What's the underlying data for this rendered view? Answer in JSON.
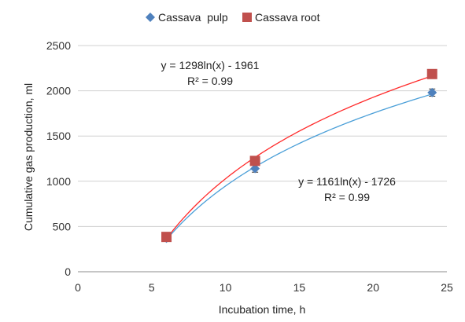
{
  "chart_data": {
    "type": "scatter",
    "title": "",
    "xlabel": "Incubation time, h",
    "ylabel": "Cumulative gas production, ml",
    "xlim": [
      0,
      25
    ],
    "ylim": [
      0,
      2500
    ],
    "xticks": [
      0,
      5,
      10,
      15,
      20,
      25
    ],
    "yticks": [
      0,
      500,
      1000,
      1500,
      2000,
      2500
    ],
    "grid": "horizontal",
    "legend_position": "top",
    "series": [
      {
        "name": "Cassava  pulp",
        "marker": "diamond",
        "color": "#4f81bd",
        "line_color": "#4a9fd8",
        "x": [
          6,
          12,
          24
        ],
        "y": [
          370,
          1140,
          1980
        ],
        "error": [
          30,
          40,
          40
        ],
        "trendline": {
          "a": 1161,
          "b": -1726
        }
      },
      {
        "name": "Cassava root",
        "marker": "square",
        "color": "#c0504d",
        "line_color": "#ff2b2b",
        "x": [
          6,
          12,
          24
        ],
        "y": [
          385,
          1225,
          2185
        ],
        "error": [
          25,
          30,
          30
        ],
        "trendline": {
          "a": 1298,
          "b": -1961
        }
      }
    ],
    "annotations": [
      {
        "series": "Cassava root",
        "equation": "y = 1298ln(x) - 1961",
        "r2": "R² = 0.99"
      },
      {
        "series": "Cassava  pulp",
        "equation": "y = 1161ln(x) - 1726",
        "r2": "R² = 0.99"
      }
    ]
  }
}
